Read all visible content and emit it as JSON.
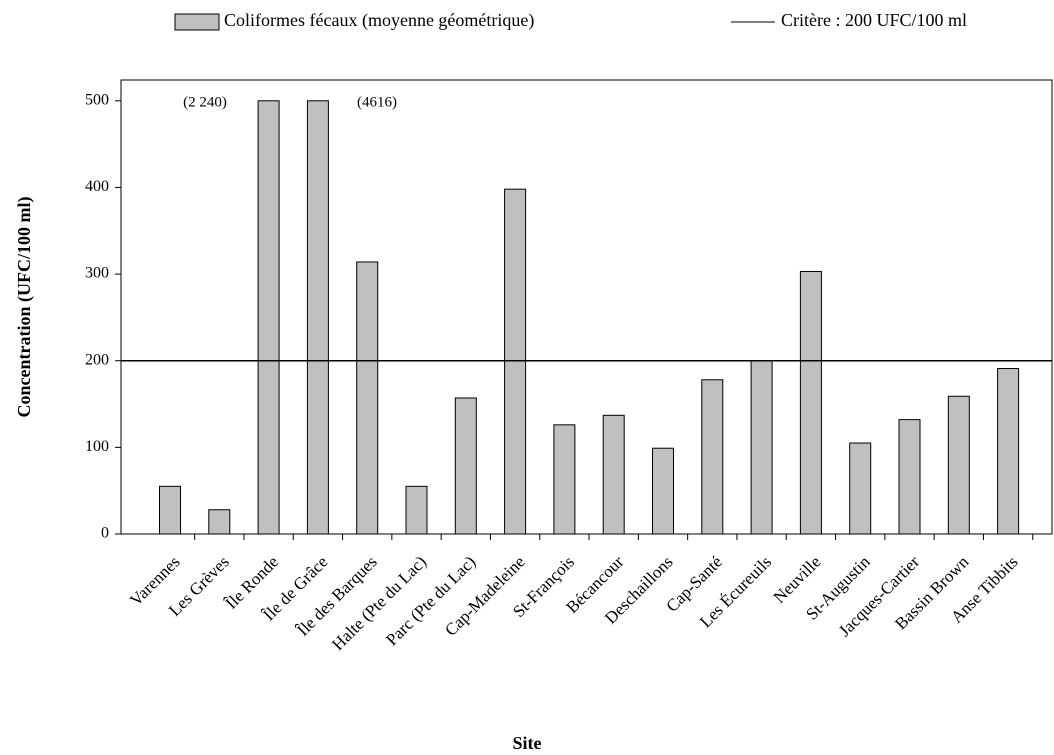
{
  "chart_data": {
    "type": "bar",
    "categories": [
      "Varennes",
      "Les Grèves",
      "Île Ronde",
      "Île de Grâce",
      "Île des Barques",
      "Halte (Pte du Lac)",
      "Parc (Pte du Lac)",
      "Cap-Madeleine",
      "St-François",
      "Bécancour",
      "Deschaillons",
      "Cap-Santé",
      "Les Écureuils",
      "Neuville",
      "St-Augustin",
      "Jacques-Cartier",
      "Bassin Brown",
      "Anse Tibbits"
    ],
    "series": [
      {
        "name": "Coliformes fécaux (moyenne géométrique)",
        "color": "#c0c0c0",
        "values": [
          55,
          28,
          500,
          500,
          314,
          55,
          157,
          398,
          126,
          137,
          99,
          178,
          200,
          303,
          105,
          132,
          159,
          191
        ]
      }
    ],
    "criterion": {
      "name": "Critère : 200 UFC/100 ml",
      "value": 200,
      "color": "#000000"
    },
    "annotations": [
      "(2 240)",
      "(4616)"
    ],
    "x_label": "Site",
    "y_label": "Concentration (UFC/100 ml)",
    "ylim": [
      0,
      524
    ],
    "yticks": [
      0,
      100,
      200,
      300,
      400,
      500
    ],
    "grid": false,
    "legend": "top"
  }
}
